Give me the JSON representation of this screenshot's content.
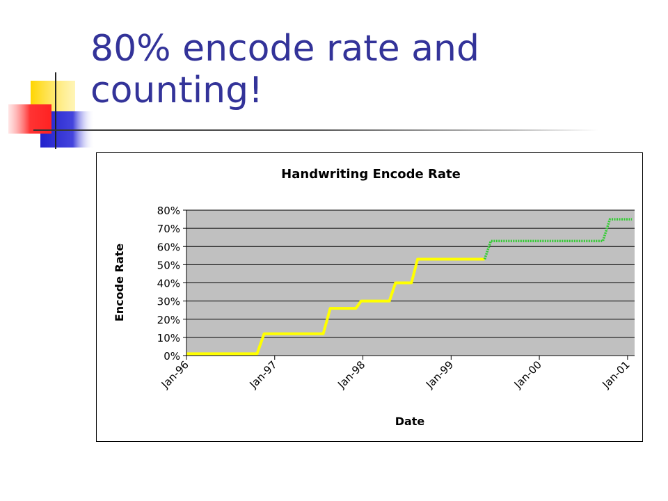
{
  "slide": {
    "title_line1": "80% encode rate and",
    "title_line2": "counting!"
  },
  "chart_data": {
    "type": "line",
    "title": "Handwriting Encode Rate",
    "xlabel": "Date",
    "ylabel": "Encode Rate",
    "x_tick_labels": [
      "Jan-96",
      "Jan-97",
      "Jan-98",
      "Jan-99",
      "Jan-00",
      "Jan-01"
    ],
    "x_ticks": [
      1996.0,
      1997.0,
      1998.0,
      1999.0,
      2000.0,
      2001.0
    ],
    "xlim": [
      1996.0,
      2001.08
    ],
    "y_tick_labels": [
      "0%",
      "10%",
      "20%",
      "30%",
      "40%",
      "50%",
      "60%",
      "70%",
      "80%"
    ],
    "y_ticks": [
      0,
      10,
      20,
      30,
      40,
      50,
      60,
      70,
      80
    ],
    "ylim": [
      0,
      80
    ],
    "grid": true,
    "plot_background": "#c0c0c0",
    "series": [
      {
        "color": "#ffff00",
        "style": "solid",
        "points": [
          [
            1996.0,
            1
          ],
          [
            1996.8,
            1
          ],
          [
            1996.88,
            12
          ],
          [
            1997.55,
            12
          ],
          [
            1997.63,
            26
          ],
          [
            1997.92,
            26
          ],
          [
            1997.98,
            30
          ],
          [
            1998.3,
            30
          ],
          [
            1998.37,
            40
          ],
          [
            1998.55,
            40
          ],
          [
            1998.62,
            53
          ],
          [
            1999.38,
            53
          ]
        ]
      },
      {
        "color": "#33cc33",
        "style": "dotted",
        "points": [
          [
            1999.38,
            53
          ],
          [
            1999.45,
            63
          ],
          [
            2000.72,
            63
          ],
          [
            2000.8,
            75
          ],
          [
            2001.05,
            75
          ]
        ]
      }
    ]
  }
}
